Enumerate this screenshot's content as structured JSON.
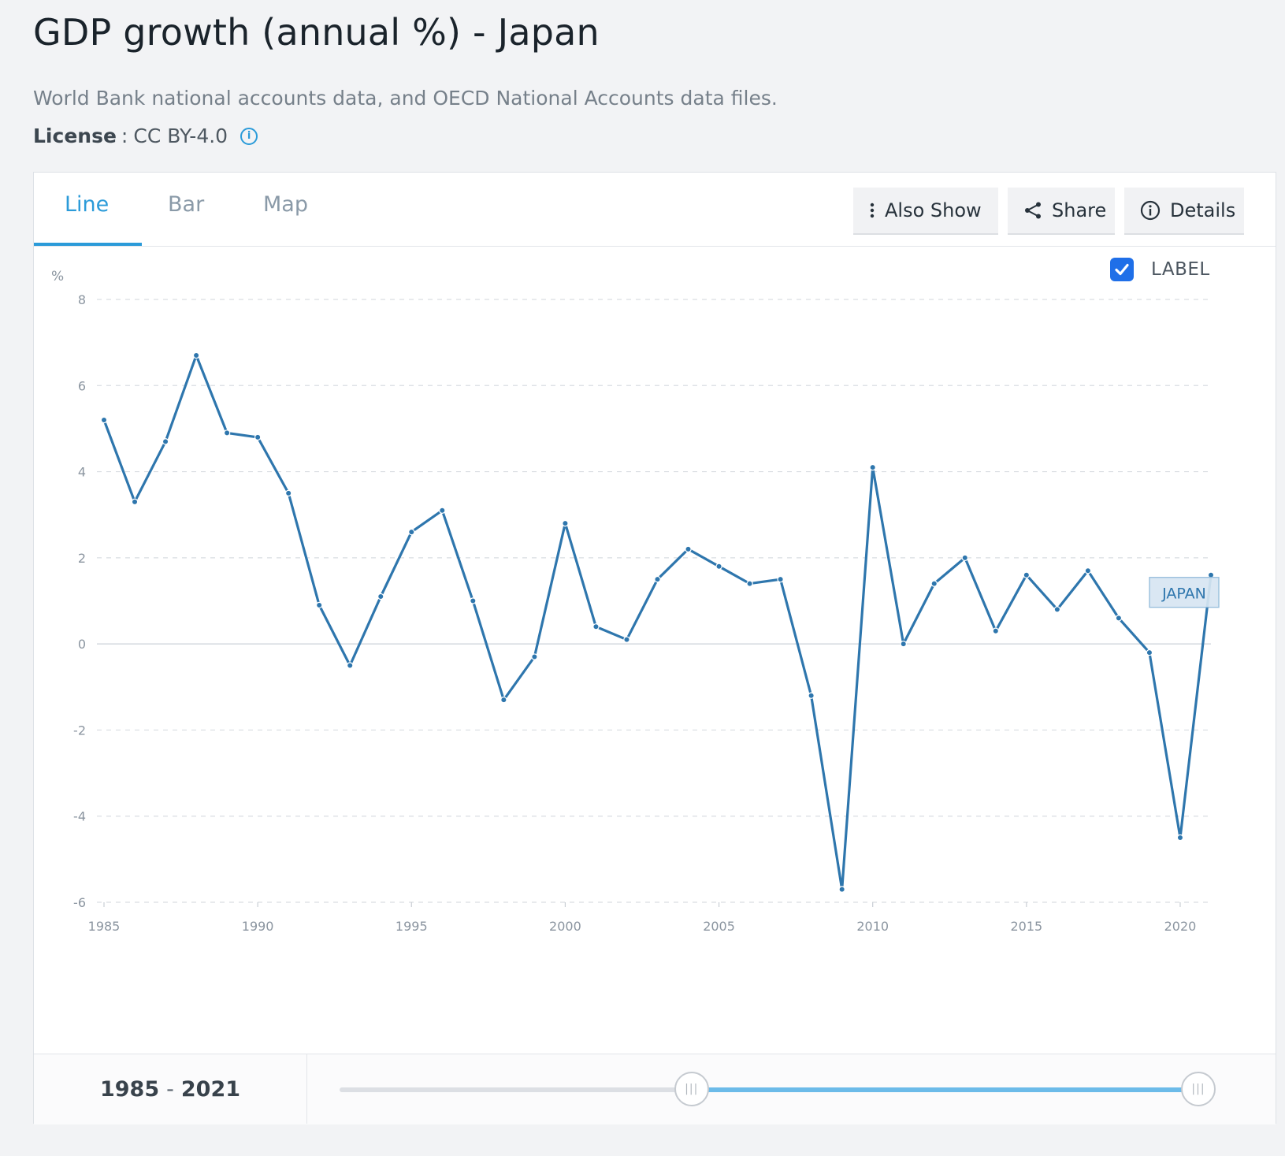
{
  "header": {
    "title": "GDP growth (annual %) - Japan",
    "source": "World Bank national accounts data, and OECD National Accounts data files.",
    "license_key": "License",
    "license_sep": ":",
    "license_value": "CC BY-4.0",
    "license_info_glyph": "i"
  },
  "tabs": [
    {
      "label": "Line",
      "active": true
    },
    {
      "label": "Bar",
      "active": false
    },
    {
      "label": "Map",
      "active": false
    }
  ],
  "toolbar": {
    "also_show_label": "Also Show",
    "share_label": "Share",
    "details_label": "Details"
  },
  "label_toggle": {
    "label": "LABEL",
    "checked": true
  },
  "range": {
    "start": "1985",
    "end": "2021",
    "dash": "-",
    "slider_min_year": 1960,
    "slider_max_year": 2021,
    "handle_glyph": "|||"
  },
  "colors": {
    "line": "#2e76ad",
    "accent": "#2b9bd9",
    "checkbox": "#1f6fe8",
    "slider_fill": "#6cbbe9"
  },
  "chart_data": {
    "type": "line",
    "title": "GDP growth (annual %) - Japan",
    "xlabel": "",
    "ylabel": "%",
    "x": [
      1985,
      1986,
      1987,
      1988,
      1989,
      1990,
      1991,
      1992,
      1993,
      1994,
      1995,
      1996,
      1997,
      1998,
      1999,
      2000,
      2001,
      2002,
      2003,
      2004,
      2005,
      2006,
      2007,
      2008,
      2009,
      2010,
      2011,
      2012,
      2013,
      2014,
      2015,
      2016,
      2017,
      2018,
      2019,
      2020,
      2021
    ],
    "series": [
      {
        "name": "",
        "end_label": "JAPAN",
        "values": [
          5.2,
          3.3,
          4.7,
          6.7,
          4.9,
          4.8,
          3.5,
          0.9,
          -0.5,
          1.1,
          2.6,
          3.1,
          1.0,
          -1.3,
          -0.3,
          2.8,
          0.4,
          0.1,
          1.5,
          2.2,
          1.8,
          1.4,
          1.5,
          -1.2,
          -5.7,
          4.1,
          0.0,
          1.4,
          2.0,
          0.3,
          1.6,
          0.8,
          1.7,
          0.6,
          -0.2,
          -4.5,
          1.6
        ]
      }
    ],
    "x_ticks": [
      1985,
      1990,
      1995,
      2000,
      2005,
      2010,
      2015,
      2020
    ],
    "y_ticks": [
      8,
      6,
      4,
      2,
      0,
      -2,
      -4,
      -6
    ],
    "xlim": [
      1985,
      2021
    ],
    "ylim": [
      -6,
      8
    ],
    "grid": true,
    "legend": "end-label"
  }
}
